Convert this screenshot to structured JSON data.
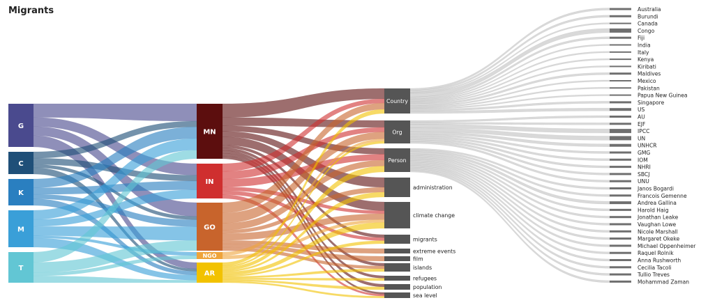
{
  "title": "Migrants",
  "colors": {
    "G": "#4a4a8e",
    "C": "#1f4f78",
    "K": "#2a7fc0",
    "M": "#3a9fd8",
    "T": "#62c6d4",
    "MN": "#5c0e0e",
    "IN": "#cf2f2f",
    "GO": "#c8642c",
    "NGO": "#eea33a",
    "AR": "#f2c200",
    "cat": "#555555",
    "ent": "#6f6f6f"
  },
  "col1": [
    {
      "id": "G",
      "label": "G"
    },
    {
      "id": "C",
      "label": "C"
    },
    {
      "id": "K",
      "label": "K"
    },
    {
      "id": "M",
      "label": "M"
    },
    {
      "id": "T",
      "label": "T"
    }
  ],
  "col2": [
    {
      "id": "MN",
      "label": "MN"
    },
    {
      "id": "IN",
      "label": "IN"
    },
    {
      "id": "GO",
      "label": "GO"
    },
    {
      "id": "NGO",
      "label": "NGO"
    },
    {
      "id": "AR",
      "label": "AR"
    }
  ],
  "col3": [
    {
      "id": "country",
      "label": "Country",
      "inside": true
    },
    {
      "id": "org",
      "label": "Org",
      "inside": true
    },
    {
      "id": "person",
      "label": "Person",
      "inside": true
    },
    {
      "id": "administration",
      "label": "administration"
    },
    {
      "id": "climate_change",
      "label": "climate change"
    },
    {
      "id": "migrants",
      "label": "migrants"
    },
    {
      "id": "extreme_events",
      "label": "extreme events"
    },
    {
      "id": "film",
      "label": "film"
    },
    {
      "id": "islands",
      "label": "islands"
    },
    {
      "id": "refugees",
      "label": "refugees"
    },
    {
      "id": "population",
      "label": "population"
    },
    {
      "id": "sea_level",
      "label": "sea level"
    }
  ],
  "col4": [
    {
      "label": "Australia",
      "group": "country"
    },
    {
      "label": "Burundi",
      "group": "country"
    },
    {
      "label": "Canada",
      "group": "country"
    },
    {
      "label": "Congo",
      "group": "country"
    },
    {
      "label": "Fiji",
      "group": "country"
    },
    {
      "label": "India",
      "group": "country"
    },
    {
      "label": "Italy",
      "group": "country"
    },
    {
      "label": "Kenya",
      "group": "country"
    },
    {
      "label": "Kiribati",
      "group": "country"
    },
    {
      "label": "Maldives",
      "group": "country"
    },
    {
      "label": "Mexico",
      "group": "country"
    },
    {
      "label": "Pakistan",
      "group": "country"
    },
    {
      "label": "Papua New Guinea",
      "group": "country"
    },
    {
      "label": "Singapore",
      "group": "country"
    },
    {
      "label": "US",
      "group": "country"
    },
    {
      "label": "AU",
      "group": "org"
    },
    {
      "label": "EJF",
      "group": "org"
    },
    {
      "label": "IPCC",
      "group": "org"
    },
    {
      "label": "UN",
      "group": "org"
    },
    {
      "label": "UNHCR",
      "group": "org"
    },
    {
      "label": "GMG",
      "group": "org"
    },
    {
      "label": "IOM",
      "group": "org"
    },
    {
      "label": "NHRI",
      "group": "org"
    },
    {
      "label": "SBCJ",
      "group": "org"
    },
    {
      "label": "UNU",
      "group": "org"
    },
    {
      "label": "Janos Bogardi",
      "group": "person"
    },
    {
      "label": "Francois Gemenne",
      "group": "person"
    },
    {
      "label": "Andrea Gallina",
      "group": "person"
    },
    {
      "label": "Harold Haig",
      "group": "person"
    },
    {
      "label": "Jonathan Leake",
      "group": "person"
    },
    {
      "label": "Vaughan Lowe",
      "group": "person"
    },
    {
      "label": "Nicole Marshall",
      "group": "person"
    },
    {
      "label": "Margaret Okeke",
      "group": "person"
    },
    {
      "label": "Michael Oppenheimer",
      "group": "person"
    },
    {
      "label": "Raquel Rolnik",
      "group": "person"
    },
    {
      "label": "Anna Rushworth",
      "group": "person"
    },
    {
      "label": "Cecilia Tacoli",
      "group": "person"
    },
    {
      "label": "Tullio Treves",
      "group": "person"
    },
    {
      "label": "Mohammad Zaman",
      "group": "person"
    }
  ],
  "flows12": [
    [
      "G",
      "MN",
      6
    ],
    [
      "G",
      "IN",
      4
    ],
    [
      "G",
      "GO",
      4
    ],
    [
      "G",
      "AR",
      5
    ],
    [
      "C",
      "MN",
      2
    ],
    [
      "C",
      "IN",
      2
    ],
    [
      "C",
      "GO",
      1
    ],
    [
      "C",
      "AR",
      2
    ],
    [
      "K",
      "MN",
      4
    ],
    [
      "K",
      "IN",
      3
    ],
    [
      "K",
      "GO",
      2
    ],
    [
      "K",
      "AR",
      3
    ],
    [
      "M",
      "MN",
      4
    ],
    [
      "M",
      "IN",
      3
    ],
    [
      "M",
      "GO",
      4
    ],
    [
      "M",
      "NGO",
      1
    ],
    [
      "M",
      "AR",
      4
    ],
    [
      "T",
      "MN",
      3
    ],
    [
      "T",
      "GO",
      3
    ],
    [
      "T",
      "NGO",
      1
    ],
    [
      "T",
      "AR",
      2
    ]
  ],
  "flows23": [
    [
      "MN",
      "country",
      5
    ],
    [
      "MN",
      "org",
      3
    ],
    [
      "MN",
      "person",
      2
    ],
    [
      "MN",
      "administration",
      2
    ],
    [
      "MN",
      "climate_change",
      3
    ],
    [
      "MN",
      "migrants",
      1
    ],
    [
      "MN",
      "islands",
      1
    ],
    [
      "MN",
      "refugees",
      1
    ],
    [
      "MN",
      "population",
      1
    ],
    [
      "MN",
      "sea_level",
      1
    ],
    [
      "IN",
      "country",
      2
    ],
    [
      "IN",
      "org",
      2
    ],
    [
      "IN",
      "person",
      2
    ],
    [
      "IN",
      "climate_change",
      1
    ],
    [
      "IN",
      "migrants",
      1
    ],
    [
      "IN",
      "sea_level",
      1
    ],
    [
      "GO",
      "country",
      3
    ],
    [
      "GO",
      "org",
      3
    ],
    [
      "GO",
      "person",
      2
    ],
    [
      "GO",
      "administration",
      1
    ],
    [
      "GO",
      "climate_change",
      2
    ],
    [
      "GO",
      "extreme_events",
      1
    ],
    [
      "GO",
      "islands",
      1
    ],
    [
      "GO",
      "film",
      1
    ],
    [
      "NGO",
      "org",
      1
    ],
    [
      "NGO",
      "climate_change",
      1
    ],
    [
      "AR",
      "country",
      2
    ],
    [
      "AR",
      "org",
      1
    ],
    [
      "AR",
      "person",
      2
    ],
    [
      "AR",
      "administration",
      1
    ],
    [
      "AR",
      "climate_change",
      2
    ],
    [
      "AR",
      "migrants",
      1
    ],
    [
      "AR",
      "islands",
      1
    ],
    [
      "AR",
      "population",
      1
    ],
    [
      "AR",
      "refugees",
      1
    ],
    [
      "AR",
      "sea_level",
      1
    ]
  ]
}
